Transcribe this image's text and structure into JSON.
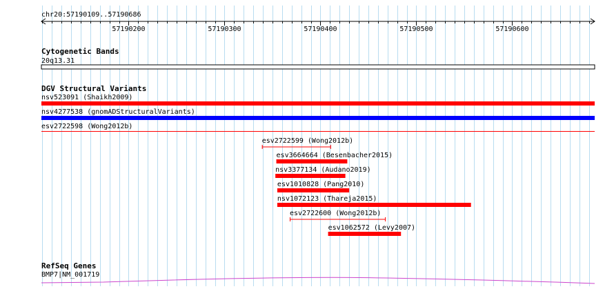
{
  "ruler": {
    "location": "chr20:57190109..57190686",
    "start": 57190109,
    "end": 57190686,
    "ticks": [
      "57190200",
      "57190300",
      "57190400",
      "57190500",
      "57190600"
    ]
  },
  "cytobands": {
    "title": "Cytogenetic Bands",
    "band": "20q13.31"
  },
  "dgv": {
    "title": "DGV Structural Variants",
    "colors": {
      "red": "#ff0000",
      "blue": "#0000ff"
    },
    "full_span": [
      {
        "label": "nsv523091 (Shaikh2009)",
        "color": "red",
        "style": "thick"
      },
      {
        "label": "nsv4277538 (gnomADStructuralVariants)",
        "color": "blue",
        "style": "thick"
      },
      {
        "label": "esv2722598 (Wong2012b)",
        "color": "red",
        "style": "thin"
      }
    ],
    "features": [
      {
        "label": "esv2722599 (Wong2012b)",
        "start": 57190339,
        "end": 57190411,
        "style": "line"
      },
      {
        "label": "esv3664664 (Besenbacher2015)",
        "start": 57190354,
        "end": 57190428,
        "style": "thick"
      },
      {
        "label": "nsv3377134 (Audano2019)",
        "start": 57190353,
        "end": 57190426,
        "style": "thick"
      },
      {
        "label": "esv1010828 (Pang2010)",
        "start": 57190355,
        "end": 57190430,
        "style": "thick"
      },
      {
        "label": "nsv1072123 (Thareja2015)",
        "start": 57190355,
        "end": 57190557,
        "style": "thick"
      },
      {
        "label": "esv2722600 (Wong2012b)",
        "start": 57190368,
        "end": 57190468,
        "style": "line"
      },
      {
        "label": "esv1062572 (Levy2007)",
        "start": 57190408,
        "end": 57190484,
        "style": "thick"
      }
    ]
  },
  "refseq": {
    "title": "RefSeq Genes",
    "gene": "BMP7|NM_001719",
    "color": "#cc44cc"
  },
  "grid": {
    "color": "#b7dcf0"
  }
}
